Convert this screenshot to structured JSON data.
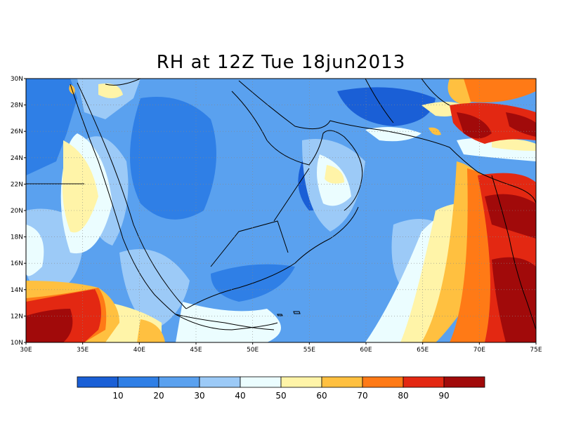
{
  "title": "RH at 12Z Tue 18jun2013",
  "map": {
    "lat_labels": [
      "30N",
      "28N",
      "26N",
      "24N",
      "22N",
      "20N",
      "18N",
      "16N",
      "14N",
      "12N",
      "10N"
    ],
    "lon_labels": [
      "30E",
      "35E",
      "40E",
      "45E",
      "50E",
      "55E",
      "60E",
      "65E",
      "70E",
      "75E"
    ],
    "lat_range": [
      10,
      30
    ],
    "lon_range": [
      30,
      75
    ],
    "grid": "dotted"
  },
  "colorbar": {
    "labels": [
      "10",
      "20",
      "30",
      "40",
      "50",
      "60",
      "70",
      "80",
      "90"
    ],
    "colors": [
      "#1a5fd6",
      "#2f7fe6",
      "#5aa1ef",
      "#9ccaf7",
      "#ebfdff",
      "#fff4a8",
      "#ffc040",
      "#ff7a16",
      "#e32812",
      "#a10a0a"
    ]
  }
}
